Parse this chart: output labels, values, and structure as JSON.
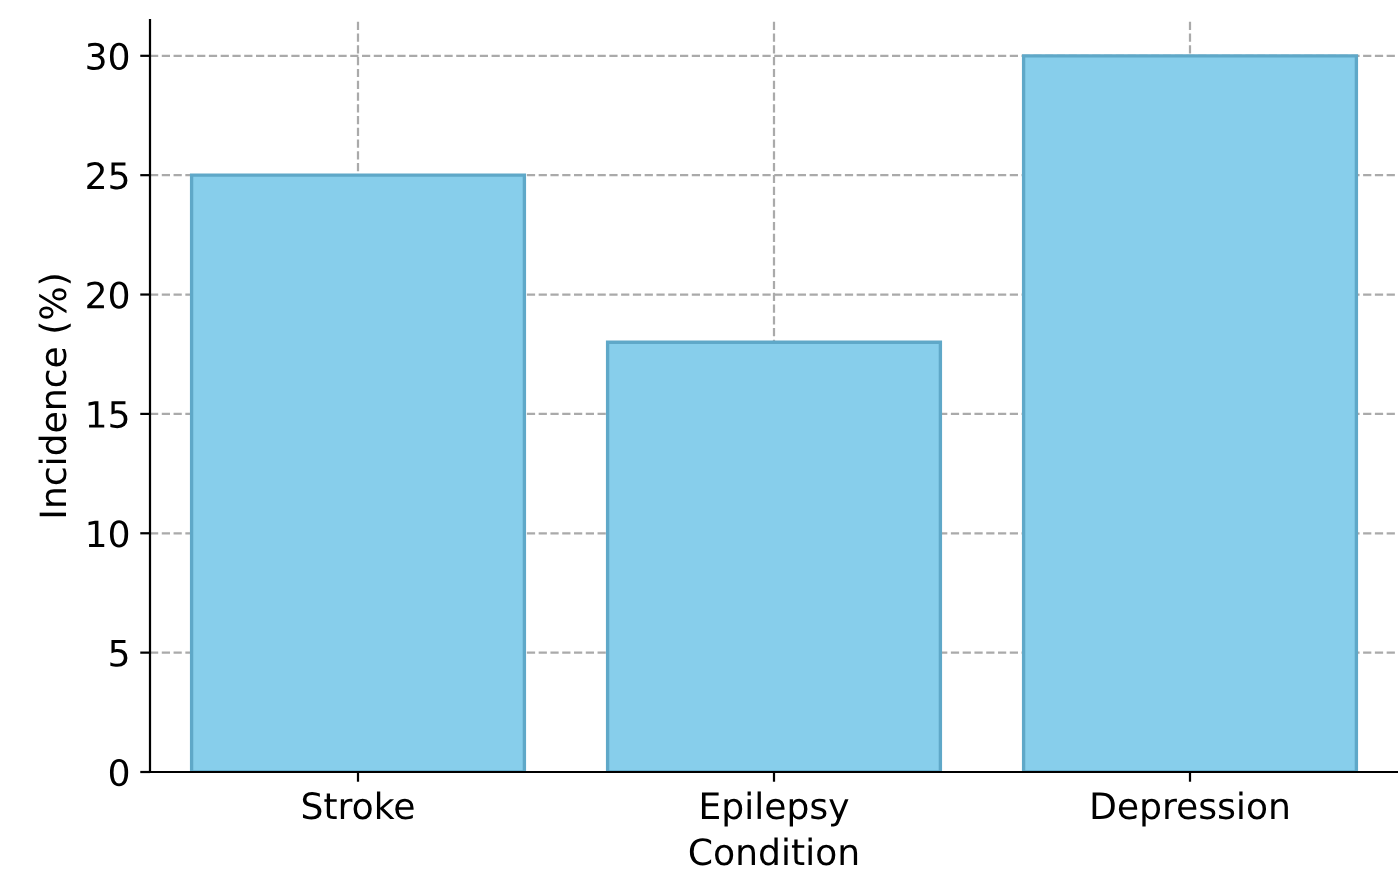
{
  "chart_data": {
    "type": "bar",
    "xlabel": "Condition",
    "ylabel": "Incidence (%)",
    "categories": [
      "Stroke",
      "Epilepsy",
      "Depression"
    ],
    "values": [
      25,
      18,
      30
    ],
    "color": "#87ceeb",
    "ylim": [
      0,
      31.5
    ],
    "yticks": [
      0,
      5,
      10,
      15,
      20,
      25,
      30
    ],
    "grid": true
  }
}
